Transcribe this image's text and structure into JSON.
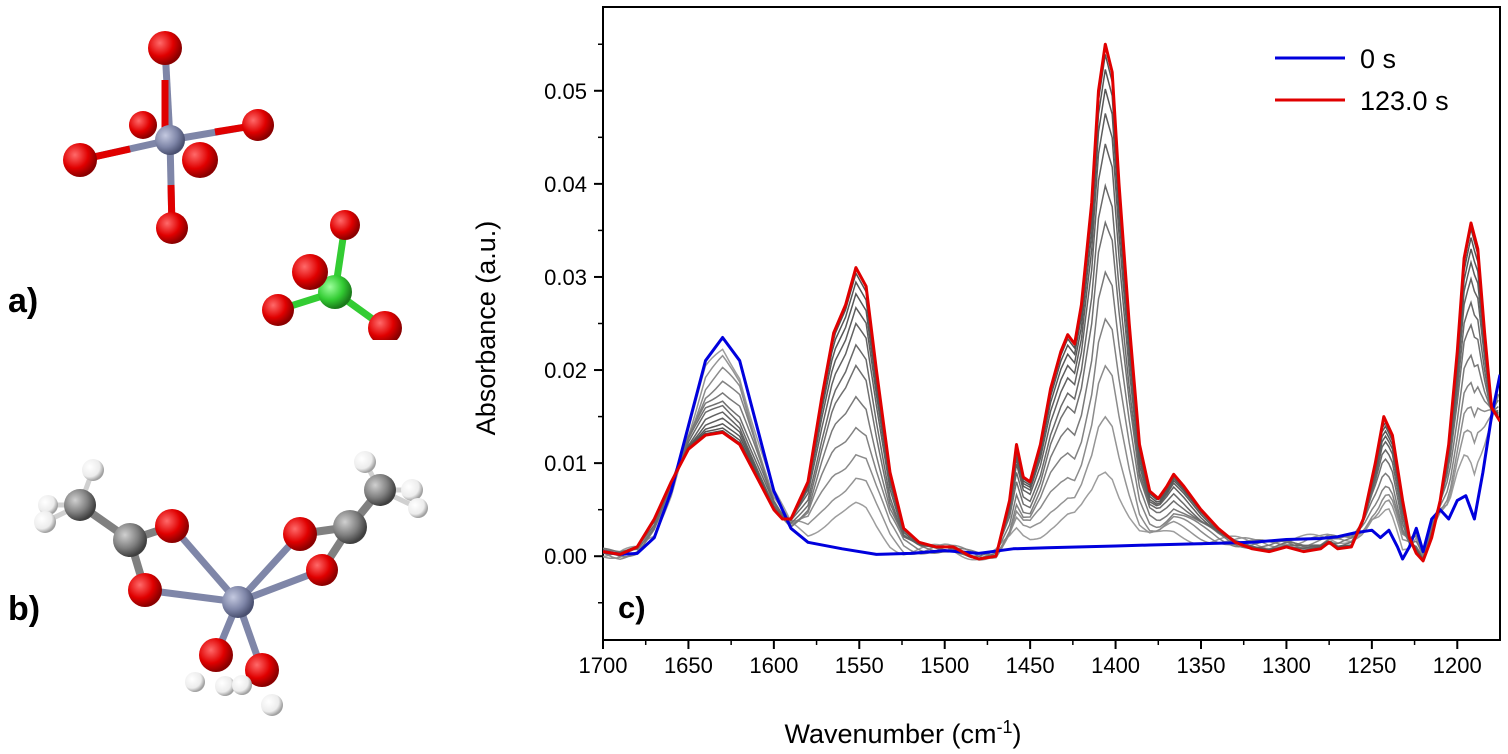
{
  "panels": {
    "a_label": "a)",
    "b_label": "b)",
    "c_label": "c)"
  },
  "colors": {
    "oxygen": "#e00000",
    "metal": "#7f86a8",
    "chlorine": "#33cc33",
    "carbon": "#808080",
    "hydrogen": "#f2f2f2",
    "blue_series": "#0000dd",
    "red_series": "#e00000",
    "gray_series": "#8c8c8c"
  },
  "chart_data": {
    "type": "line",
    "xlabel": "Wavenumber (cm",
    "xlabel_sup": "-1",
    "xlabel_end": ")",
    "ylabel": "Absorbance (a.u.)",
    "xlim": [
      1700,
      1175
    ],
    "ylim": [
      -0.009,
      0.059
    ],
    "x_reversed": true,
    "x_ticks": [
      1700,
      1650,
      1600,
      1550,
      1500,
      1450,
      1400,
      1350,
      1300,
      1250,
      1200
    ],
    "y_ticks": [
      0.0,
      0.01,
      0.02,
      0.03,
      0.04,
      0.05
    ],
    "y_tick_labels": [
      "0.00",
      "0.01",
      "0.02",
      "0.03",
      "0.04",
      "0.05"
    ],
    "legend_position": "top-right",
    "series": [
      {
        "name": "0 s",
        "color": "#0000dd",
        "points": [
          [
            1700,
            0.0005
          ],
          [
            1690,
            0.0002
          ],
          [
            1680,
            0.0003
          ],
          [
            1670,
            0.002
          ],
          [
            1660,
            0.007
          ],
          [
            1650,
            0.014
          ],
          [
            1640,
            0.021
          ],
          [
            1630,
            0.0235
          ],
          [
            1620,
            0.021
          ],
          [
            1610,
            0.014
          ],
          [
            1600,
            0.007
          ],
          [
            1590,
            0.003
          ],
          [
            1580,
            0.0015
          ],
          [
            1560,
            0.0008
          ],
          [
            1540,
            0.0002
          ],
          [
            1520,
            0.0003
          ],
          [
            1500,
            0.0006
          ],
          [
            1480,
            0.0003
          ],
          [
            1460,
            0.0008
          ],
          [
            1440,
            0.0009
          ],
          [
            1420,
            0.001
          ],
          [
            1400,
            0.0011
          ],
          [
            1380,
            0.0012
          ],
          [
            1360,
            0.0013
          ],
          [
            1340,
            0.0014
          ],
          [
            1320,
            0.0015
          ],
          [
            1300,
            0.0018
          ],
          [
            1280,
            0.0019
          ],
          [
            1270,
            0.0021
          ],
          [
            1260,
            0.0025
          ],
          [
            1250,
            0.0028
          ],
          [
            1245,
            0.002
          ],
          [
            1240,
            0.0028
          ],
          [
            1235,
            0.001
          ],
          [
            1232,
            -0.0003
          ],
          [
            1228,
            0.001
          ],
          [
            1224,
            0.003
          ],
          [
            1220,
            0.0005
          ],
          [
            1215,
            0.004
          ],
          [
            1210,
            0.005
          ],
          [
            1205,
            0.004
          ],
          [
            1200,
            0.006
          ],
          [
            1195,
            0.0065
          ],
          [
            1190,
            0.004
          ],
          [
            1185,
            0.009
          ],
          [
            1180,
            0.015
          ],
          [
            1175,
            0.0195
          ]
        ]
      },
      {
        "name": "123.0 s",
        "color": "#e00000",
        "points": [
          [
            1700,
            0.0005
          ],
          [
            1690,
            0.0002
          ],
          [
            1680,
            0.001
          ],
          [
            1670,
            0.004
          ],
          [
            1660,
            0.008
          ],
          [
            1650,
            0.0115
          ],
          [
            1640,
            0.013
          ],
          [
            1630,
            0.0133
          ],
          [
            1620,
            0.012
          ],
          [
            1610,
            0.0085
          ],
          [
            1600,
            0.005
          ],
          [
            1595,
            0.004
          ],
          [
            1590,
            0.004
          ],
          [
            1580,
            0.008
          ],
          [
            1572,
            0.017
          ],
          [
            1565,
            0.024
          ],
          [
            1558,
            0.027
          ],
          [
            1552,
            0.031
          ],
          [
            1546,
            0.029
          ],
          [
            1540,
            0.02
          ],
          [
            1532,
            0.009
          ],
          [
            1524,
            0.003
          ],
          [
            1515,
            0.0015
          ],
          [
            1505,
            0.001
          ],
          [
            1495,
            0.001
          ],
          [
            1485,
            0.0
          ],
          [
            1480,
            -0.0003
          ],
          [
            1470,
            0.0
          ],
          [
            1462,
            0.006
          ],
          [
            1458,
            0.012
          ],
          [
            1454,
            0.0085
          ],
          [
            1450,
            0.008
          ],
          [
            1444,
            0.012
          ],
          [
            1438,
            0.018
          ],
          [
            1432,
            0.022
          ],
          [
            1428,
            0.0238
          ],
          [
            1424,
            0.0228
          ],
          [
            1420,
            0.027
          ],
          [
            1414,
            0.038
          ],
          [
            1410,
            0.05
          ],
          [
            1406,
            0.055
          ],
          [
            1402,
            0.052
          ],
          [
            1398,
            0.04
          ],
          [
            1392,
            0.025
          ],
          [
            1386,
            0.012
          ],
          [
            1380,
            0.007
          ],
          [
            1375,
            0.0062
          ],
          [
            1370,
            0.0075
          ],
          [
            1366,
            0.0088
          ],
          [
            1360,
            0.0075
          ],
          [
            1350,
            0.005
          ],
          [
            1340,
            0.003
          ],
          [
            1330,
            0.0015
          ],
          [
            1320,
            0.0008
          ],
          [
            1310,
            0.0005
          ],
          [
            1300,
            0.001
          ],
          [
            1290,
            0.0005
          ],
          [
            1280,
            0.0008
          ],
          [
            1275,
            0.0015
          ],
          [
            1270,
            0.0008
          ],
          [
            1262,
            0.001
          ],
          [
            1255,
            0.004
          ],
          [
            1248,
            0.01
          ],
          [
            1243,
            0.015
          ],
          [
            1238,
            0.013
          ],
          [
            1232,
            0.006
          ],
          [
            1228,
            0.002
          ],
          [
            1224,
            0.0003
          ],
          [
            1220,
            -0.0005
          ],
          [
            1215,
            0.002
          ],
          [
            1210,
            0.006
          ],
          [
            1205,
            0.012
          ],
          [
            1200,
            0.022
          ],
          [
            1196,
            0.032
          ],
          [
            1192,
            0.0358
          ],
          [
            1188,
            0.033
          ],
          [
            1184,
            0.024
          ],
          [
            1180,
            0.016
          ],
          [
            1175,
            0.0145
          ]
        ]
      }
    ]
  }
}
